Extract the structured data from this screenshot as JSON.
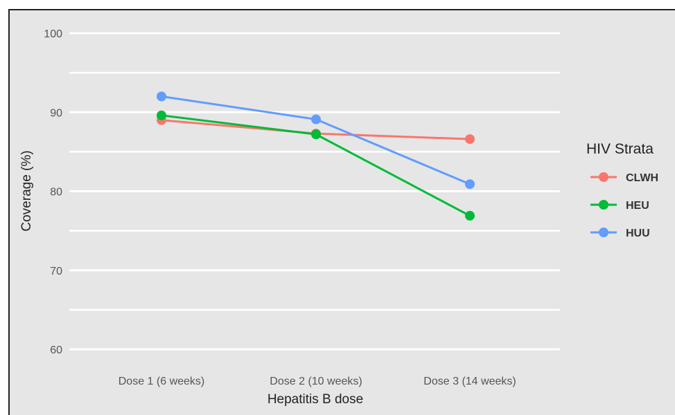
{
  "chart_data": {
    "type": "line",
    "title": "",
    "xlabel": "Hepatitis B dose",
    "ylabel": "Coverage (%)",
    "categories": [
      "Dose 1 (6 weeks)",
      "Dose 2 (10 weeks)",
      "Dose 3 (14 weeks)"
    ],
    "ylim": [
      60,
      100
    ],
    "yticks": [
      60,
      70,
      80,
      90,
      100
    ],
    "grid": true,
    "legend": {
      "title": "HIV Strata",
      "placement": "right"
    },
    "series": [
      {
        "name": "CLWH",
        "color": "#F8766D",
        "values": [
          89.0,
          87.3,
          86.6
        ]
      },
      {
        "name": "HEU",
        "color": "#00BA38",
        "values": [
          89.6,
          87.2,
          76.9
        ]
      },
      {
        "name": "HUU",
        "color": "#619CFF",
        "values": [
          92.0,
          89.1,
          80.9
        ]
      }
    ]
  }
}
